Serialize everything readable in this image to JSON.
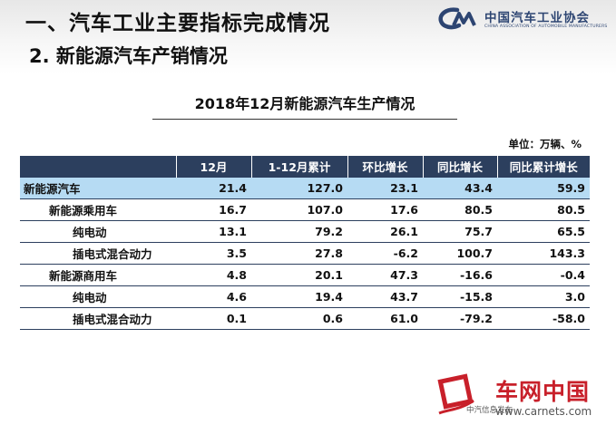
{
  "slide": {
    "heading": "一、汽车工业主要指标完成情况",
    "subheading": "2. 新能源汽车产销情况",
    "logo": {
      "name": "中国汽车工业协会",
      "english": "CHINA ASSOCIATION OF AUTOMOBILE MANUFACTURERS"
    }
  },
  "table": {
    "title": "2018年12月新能源汽车生产情况",
    "unit": "单位：万辆、%",
    "columns": [
      "12月",
      "1-12月累计",
      "环比增长",
      "同比增长",
      "同比累计增长"
    ],
    "rows": [
      {
        "name": "新能源汽车",
        "values": [
          "21.4",
          "127.0",
          "23.1",
          "43.4",
          "59.9"
        ]
      },
      {
        "name": "新能源乘用车",
        "values": [
          "16.7",
          "107.0",
          "17.6",
          "80.5",
          "80.5"
        ]
      },
      {
        "name": "纯电动",
        "values": [
          "13.1",
          "79.2",
          "26.1",
          "75.7",
          "65.5"
        ]
      },
      {
        "name": "插电式混合动力",
        "values": [
          "3.5",
          "27.8",
          "-6.2",
          "100.7",
          "143.3"
        ]
      },
      {
        "name": "新能源商用车",
        "values": [
          "4.8",
          "20.1",
          "47.3",
          "-16.6",
          "-0.4"
        ]
      },
      {
        "name": "纯电动",
        "values": [
          "4.6",
          "19.4",
          "43.7",
          "-15.8",
          "3.0"
        ]
      },
      {
        "name": "插电式混合动力",
        "values": [
          "0.1",
          "0.6",
          "61.0",
          "-79.2",
          "-58.0"
        ]
      }
    ]
  },
  "watermark": {
    "name": "车网中国",
    "url": "www.carnets.com",
    "under_text": "中汽信息发布"
  },
  "colors": {
    "header_fill": "#2c3f5e",
    "highlight_row": "#b6dbf3",
    "logo_blue": "#2d4572",
    "watermark_red": "#c8202a"
  }
}
